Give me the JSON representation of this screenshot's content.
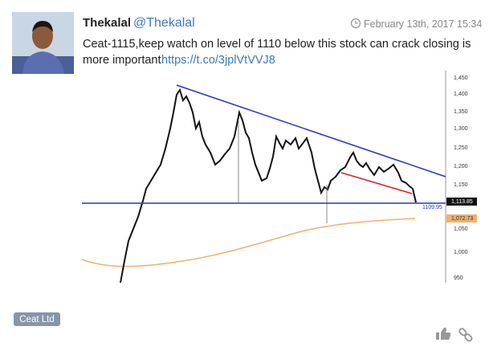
{
  "post": {
    "author_name": "Thekalal",
    "handle": "@Thekalal",
    "timestamp": "February 13th, 2017 15:34",
    "text_line1": "Ceat-1115,keep watch on level of 1110 below this stock can crack closing is",
    "text_line2": "more important",
    "link": "https://t.co/3jplVtVVJ8",
    "tag": "Ceat Ltd"
  },
  "chart_image": {
    "axis_labels": [
      "1,450",
      "1,400",
      "1,350",
      "1,300",
      "1,250",
      "1,200",
      "1,150",
      "1,050",
      "1,000",
      "950"
    ],
    "last_price_label": "1,113.85",
    "support_label": "1109.95",
    "average_label": "1,072.73"
  }
}
